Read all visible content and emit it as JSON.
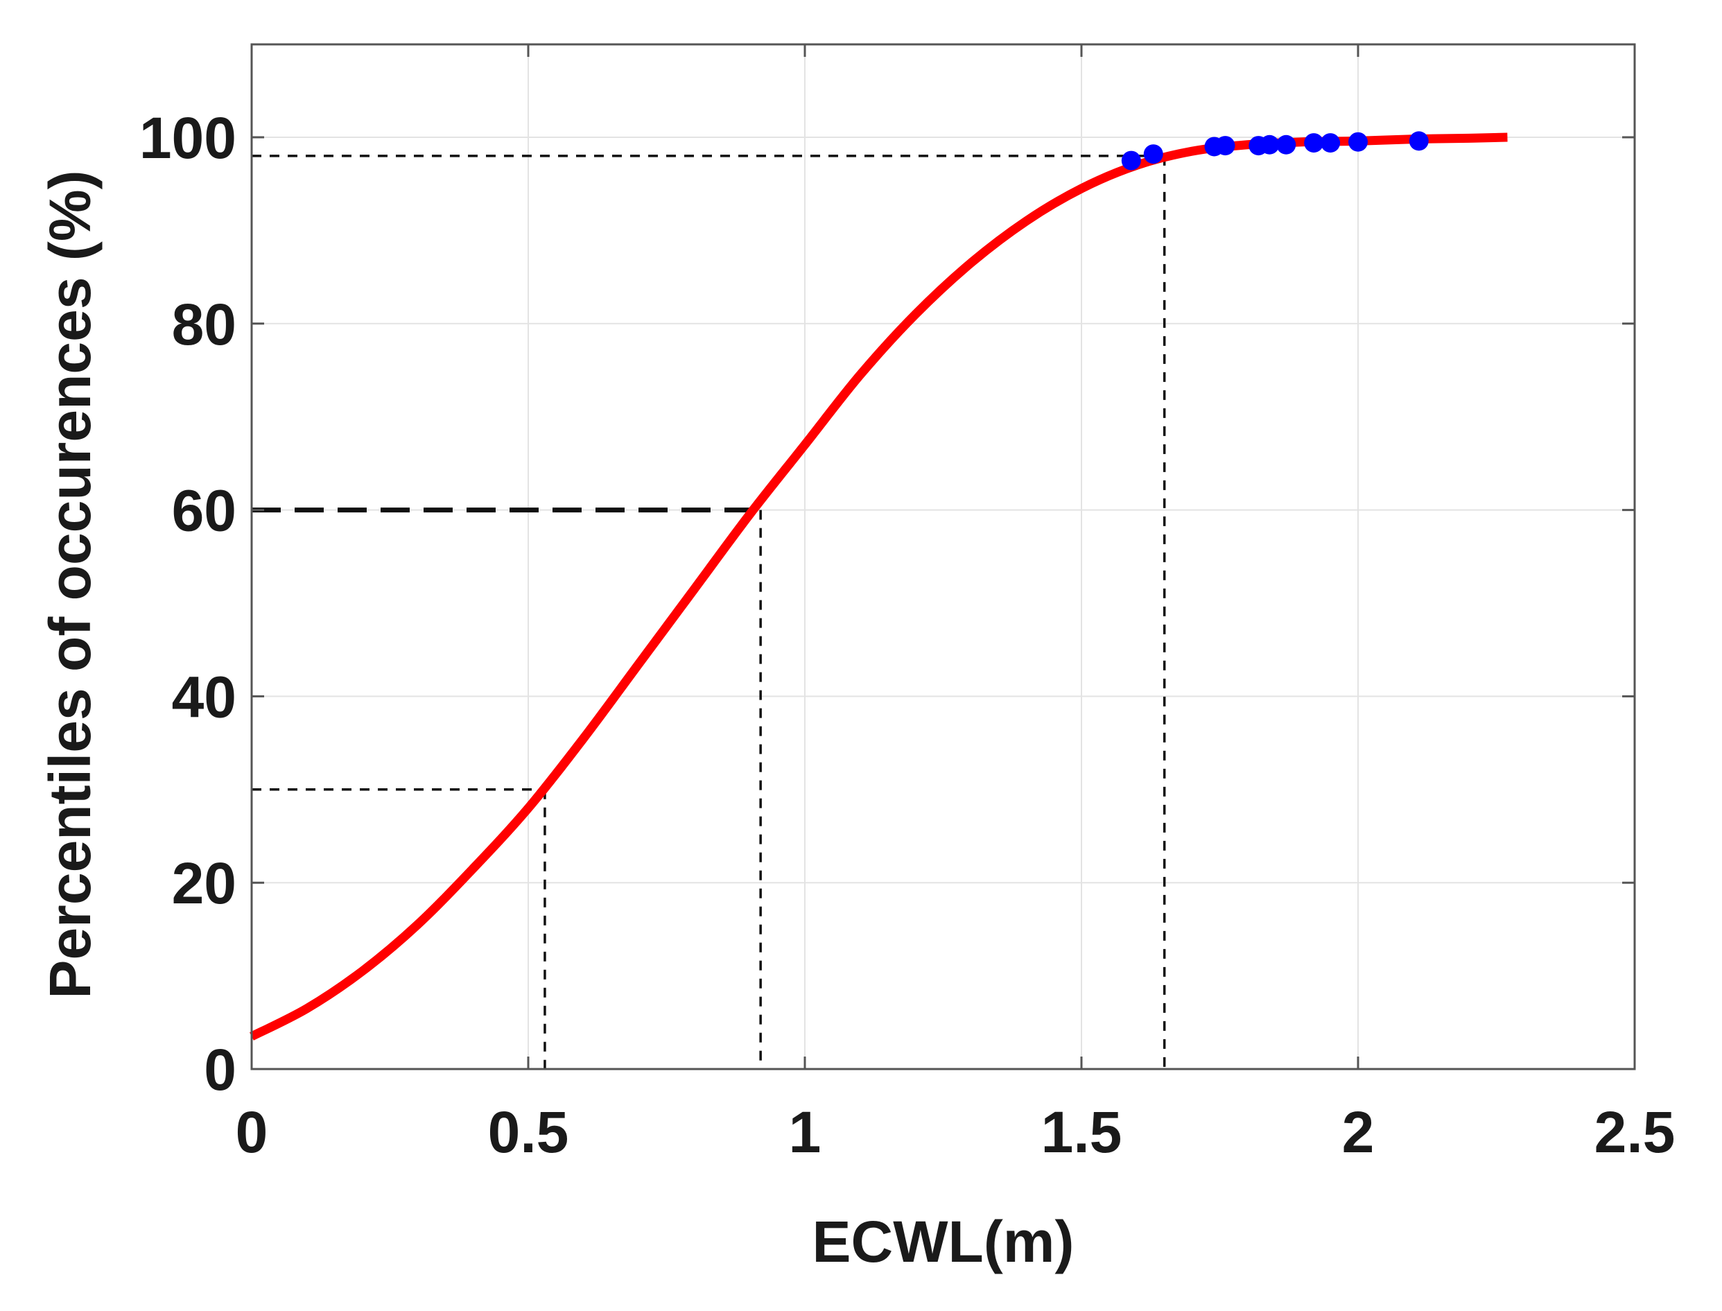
{
  "chart_data": {
    "type": "line",
    "title": "",
    "xlabel": "ECWL(m)",
    "ylabel": "Percentiles of occurences (%)",
    "xlim": [
      0,
      2.5
    ],
    "ylim": [
      0,
      100
    ],
    "x_ticks": [
      "0",
      "0.5",
      "1",
      "1.5",
      "2",
      "2.5"
    ],
    "y_ticks": [
      "0",
      "20",
      "40",
      "60",
      "80",
      "100"
    ],
    "x_tick_values": [
      0,
      0.5,
      1,
      1.5,
      2,
      2.5
    ],
    "y_tick_values": [
      0,
      20,
      40,
      60,
      80,
      100
    ],
    "grid": true,
    "series": [
      {
        "kind": "line",
        "color": "#ff0000",
        "x": [
          0,
          0.1,
          0.2,
          0.3,
          0.4,
          0.5,
          0.6,
          0.7,
          0.8,
          0.9,
          1.0,
          1.1,
          1.2,
          1.3,
          1.4,
          1.5,
          1.6,
          1.7,
          1.8,
          1.9,
          2.0,
          2.1,
          2.2,
          2.27
        ],
        "y": [
          3.5,
          6.5,
          10.5,
          15.5,
          21.5,
          28,
          35.5,
          43.5,
          51.5,
          59.5,
          67,
          74.5,
          81,
          86.5,
          91,
          94.5,
          97,
          98.5,
          99.2,
          99.5,
          99.6,
          99.8,
          99.9,
          100
        ]
      },
      {
        "kind": "scatter",
        "color": "#0000ff",
        "x": [
          1.59,
          1.63,
          1.74,
          1.76,
          1.82,
          1.84,
          1.87,
          1.92,
          1.95,
          2.0,
          2.11
        ],
        "y": [
          97.5,
          98.2,
          99.0,
          99.1,
          99.1,
          99.2,
          99.2,
          99.4,
          99.4,
          99.5,
          99.6
        ]
      }
    ],
    "reference_lines": [
      {
        "x": 0.53,
        "y": 30,
        "style": "thin-dash"
      },
      {
        "x": 0.92,
        "y": 60,
        "style": "thick-dash"
      },
      {
        "x": 1.65,
        "y": 98,
        "style": "thin-dash"
      }
    ]
  }
}
